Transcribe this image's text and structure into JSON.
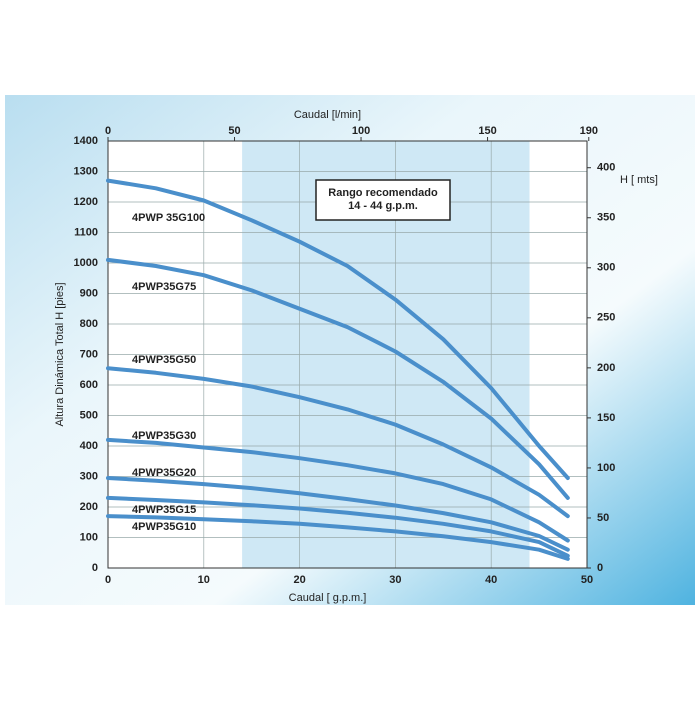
{
  "chart_data": {
    "type": "line",
    "x_label": "Caudal [ g.p.m.]",
    "x2_label": "Caudal [l/min]",
    "y_label": "Altura Dinámica Total H [pies]",
    "y2_label": "H [ mts]",
    "x": [
      0,
      5,
      10,
      15,
      20,
      25,
      30,
      35,
      40,
      45,
      48
    ],
    "xlim": [
      0,
      50
    ],
    "xticks": [
      0,
      10,
      20,
      30,
      40,
      50
    ],
    "x2lim": [
      0,
      189.3
    ],
    "x2ticks": [
      0,
      50,
      100,
      150,
      190
    ],
    "ylim": [
      0,
      1400
    ],
    "yticks": [
      0,
      100,
      200,
      300,
      400,
      500,
      600,
      700,
      800,
      900,
      1000,
      1100,
      1200,
      1300,
      1400
    ],
    "y2lim": [
      0,
      426.7
    ],
    "y2ticks": [
      0,
      50,
      100,
      150,
      200,
      250,
      300,
      350,
      400
    ],
    "grid": true,
    "recommended_range": [
      14,
      44
    ],
    "range_color": "#cfe8f5",
    "annotation": [
      "Rango recomendado",
      "14 - 44 g.p.m."
    ],
    "series": [
      {
        "name": "4PWP 35G100",
        "color": "#4a8fcb",
        "values": [
          1270,
          1245,
          1205,
          1140,
          1070,
          990,
          880,
          750,
          590,
          400,
          295
        ]
      },
      {
        "name": "4PWP35G75",
        "color": "#4a8fcb",
        "values": [
          1010,
          990,
          960,
          910,
          850,
          790,
          710,
          610,
          490,
          340,
          230
        ]
      },
      {
        "name": "4PWP35G50",
        "color": "#4a8fcb",
        "values": [
          655,
          640,
          620,
          595,
          560,
          520,
          470,
          405,
          330,
          240,
          170
        ]
      },
      {
        "name": "4PWP35G30",
        "color": "#4a8fcb",
        "values": [
          420,
          410,
          395,
          380,
          360,
          337,
          310,
          275,
          225,
          150,
          90
        ]
      },
      {
        "name": "4PWP35G20",
        "color": "#4a8fcb",
        "values": [
          295,
          286,
          275,
          262,
          245,
          226,
          205,
          180,
          150,
          105,
          60
        ]
      },
      {
        "name": "4PWP35G15",
        "color": "#4a8fcb",
        "values": [
          230,
          223,
          215,
          206,
          195,
          181,
          165,
          145,
          120,
          85,
          40
        ]
      },
      {
        "name": "4PWP35G10",
        "color": "#4a8fcb",
        "values": [
          170,
          166,
          160,
          153,
          145,
          133,
          120,
          104,
          85,
          60,
          30
        ]
      }
    ]
  }
}
